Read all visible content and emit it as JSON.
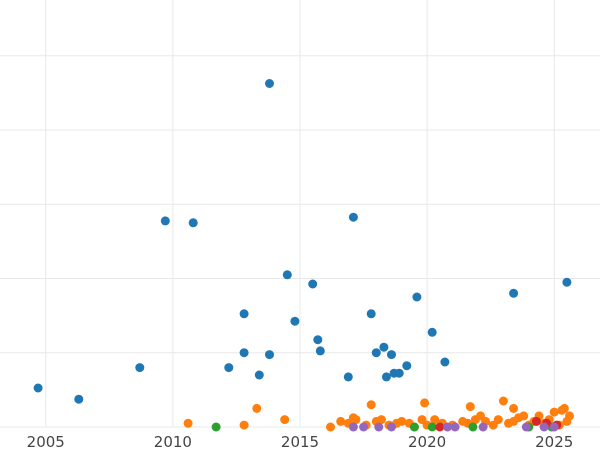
{
  "chart_data": {
    "type": "scatter",
    "title": "",
    "xlabel": "",
    "ylabel": "",
    "xlim": [
      2003.2,
      2026.8
    ],
    "ylim": [
      0,
      23
    ],
    "x_ticks": [
      2005,
      2010,
      2015,
      2020,
      2025
    ],
    "x_tick_labels": [
      "2005",
      "2010",
      "2015",
      "2020",
      "2025"
    ],
    "y_gridlines": [
      0,
      4,
      8,
      12,
      16,
      20
    ],
    "grid": true,
    "legend": "none",
    "series": [
      {
        "color": "#1f77b4",
        "points": [
          [
            2004.7,
            2.1
          ],
          [
            2006.3,
            1.5
          ],
          [
            2008.7,
            3.2
          ],
          [
            2009.7,
            11.1
          ],
          [
            2010.8,
            11.0
          ],
          [
            2012.2,
            3.2
          ],
          [
            2012.8,
            6.1
          ],
          [
            2012.8,
            4.0
          ],
          [
            2013.4,
            2.8
          ],
          [
            2013.8,
            3.9
          ],
          [
            2013.8,
            18.5
          ],
          [
            2014.5,
            8.2
          ],
          [
            2014.8,
            5.7
          ],
          [
            2015.5,
            7.7
          ],
          [
            2015.7,
            4.7
          ],
          [
            2015.8,
            4.1
          ],
          [
            2016.9,
            2.7
          ],
          [
            2017.1,
            11.3
          ],
          [
            2017.8,
            6.1
          ],
          [
            2018.0,
            4.0
          ],
          [
            2018.3,
            4.3
          ],
          [
            2018.4,
            2.7
          ],
          [
            2018.6,
            3.9
          ],
          [
            2018.7,
            2.9
          ],
          [
            2018.9,
            2.9
          ],
          [
            2019.2,
            3.3
          ],
          [
            2019.6,
            7.0
          ],
          [
            2020.2,
            5.1
          ],
          [
            2020.7,
            3.5
          ],
          [
            2023.4,
            7.2
          ],
          [
            2025.5,
            7.8
          ]
        ]
      },
      {
        "color": "#ff7f0e",
        "points": [
          [
            2010.6,
            0.2
          ],
          [
            2012.8,
            0.1
          ],
          [
            2013.3,
            1.0
          ],
          [
            2014.4,
            0.4
          ],
          [
            2016.2,
            0.0
          ],
          [
            2016.6,
            0.3
          ],
          [
            2016.9,
            0.2
          ],
          [
            2017.1,
            0.5
          ],
          [
            2017.2,
            0.4
          ],
          [
            2017.6,
            0.1
          ],
          [
            2017.8,
            1.2
          ],
          [
            2018.0,
            0.3
          ],
          [
            2018.2,
            0.4
          ],
          [
            2018.5,
            0.1
          ],
          [
            2018.8,
            0.2
          ],
          [
            2019.0,
            0.3
          ],
          [
            2019.3,
            0.2
          ],
          [
            2019.5,
            0.0
          ],
          [
            2019.8,
            0.4
          ],
          [
            2019.9,
            1.3
          ],
          [
            2020.0,
            0.1
          ],
          [
            2020.3,
            0.4
          ],
          [
            2020.6,
            0.2
          ],
          [
            2021.0,
            0.1
          ],
          [
            2021.4,
            0.3
          ],
          [
            2021.6,
            0.2
          ],
          [
            2021.7,
            1.1
          ],
          [
            2021.9,
            0.4
          ],
          [
            2022.1,
            0.6
          ],
          [
            2022.3,
            0.3
          ],
          [
            2022.6,
            0.1
          ],
          [
            2022.8,
            0.4
          ],
          [
            2023.0,
            1.4
          ],
          [
            2023.2,
            0.2
          ],
          [
            2023.4,
            0.3
          ],
          [
            2023.4,
            1.0
          ],
          [
            2023.6,
            0.5
          ],
          [
            2023.8,
            0.6
          ],
          [
            2024.0,
            0.1
          ],
          [
            2024.2,
            0.3
          ],
          [
            2024.4,
            0.6
          ],
          [
            2024.6,
            0.2
          ],
          [
            2024.8,
            0.4
          ],
          [
            2025.0,
            0.8
          ],
          [
            2025.2,
            0.1
          ],
          [
            2025.3,
            0.9
          ],
          [
            2025.4,
            1.0
          ],
          [
            2025.5,
            0.3
          ],
          [
            2025.6,
            0.6
          ]
        ]
      },
      {
        "color": "#2ca02c",
        "points": [
          [
            2011.7,
            0.0
          ],
          [
            2019.5,
            0.0
          ],
          [
            2020.2,
            0.0
          ],
          [
            2021.8,
            0.0
          ],
          [
            2024.0,
            0.0
          ],
          [
            2024.9,
            0.0
          ]
        ]
      },
      {
        "color": "#d62728",
        "points": [
          [
            2020.5,
            0.0
          ],
          [
            2024.3,
            0.3
          ],
          [
            2024.7,
            0.2
          ],
          [
            2025.1,
            0.1
          ]
        ]
      },
      {
        "color": "#9467bd",
        "points": [
          [
            2017.1,
            0.0
          ],
          [
            2017.5,
            0.0
          ],
          [
            2018.1,
            0.0
          ],
          [
            2018.6,
            0.0
          ],
          [
            2020.8,
            0.0
          ],
          [
            2021.1,
            0.0
          ],
          [
            2022.2,
            0.0
          ],
          [
            2023.9,
            0.0
          ],
          [
            2024.6,
            0.0
          ],
          [
            2025.0,
            0.0
          ]
        ]
      }
    ]
  }
}
